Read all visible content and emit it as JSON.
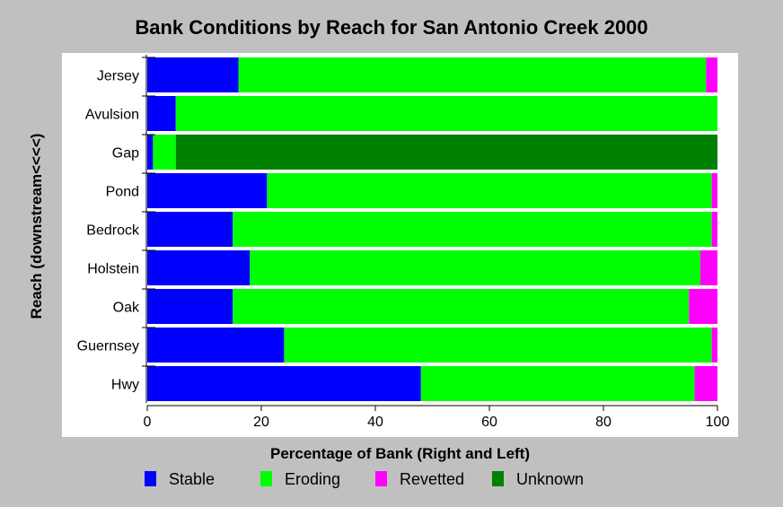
{
  "chart_data": {
    "type": "bar",
    "orientation": "horizontal",
    "stacked": true,
    "title": "Bank Conditions by Reach for San Antonio Creek 2000",
    "xlabel": "Percentage of Bank (Right and Left)",
    "ylabel": "Reach (downstream<<<<)",
    "xlim": [
      0,
      100
    ],
    "xticks": [
      "0",
      "20",
      "40",
      "60",
      "80",
      "100"
    ],
    "categories": [
      "Jersey",
      "Avulsion",
      "Gap",
      "Pond",
      "Bedrock",
      "Holstein",
      "Oak",
      "Guernsey",
      "Hwy"
    ],
    "series": [
      {
        "name": "Stable",
        "color": "#0000ff",
        "values": [
          16,
          5,
          1,
          21,
          15,
          18,
          15,
          24,
          48
        ]
      },
      {
        "name": "Eroding",
        "color": "#00ff00",
        "values": [
          82,
          95,
          4,
          78,
          84,
          79,
          80,
          75,
          48
        ]
      },
      {
        "name": "Revetted",
        "color": "#ff00ff",
        "values": [
          2,
          0,
          0,
          1,
          1,
          3,
          5,
          1,
          4
        ]
      },
      {
        "name": "Unknown",
        "color": "#008000",
        "values": [
          0,
          0,
          95,
          0,
          0,
          0,
          0,
          0,
          0
        ]
      }
    ],
    "legend_position": "bottom",
    "grid": false
  },
  "colors": {
    "page_background": "#c0c0c0",
    "plot_background": "#ffffff"
  }
}
